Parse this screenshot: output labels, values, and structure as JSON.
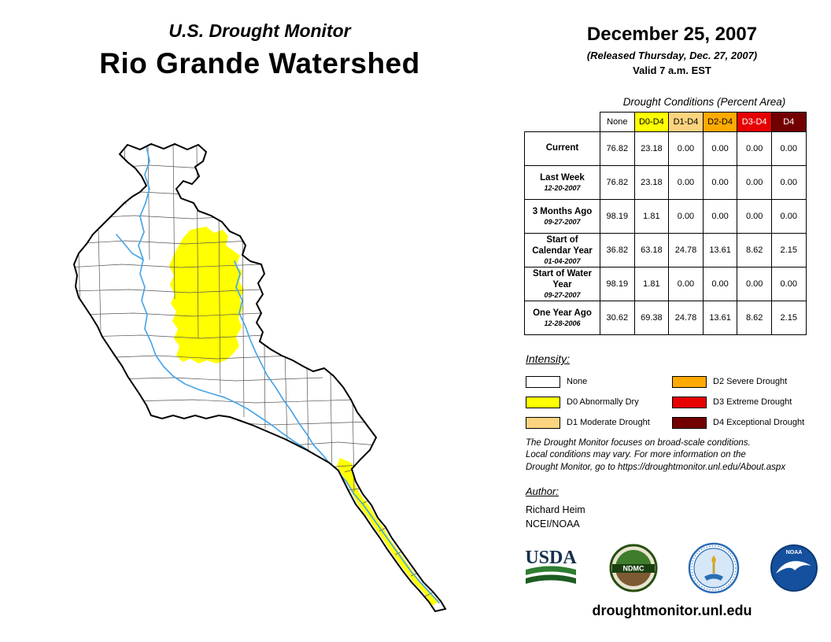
{
  "title": {
    "kicker": "U.S. Drought Monitor",
    "main": "Rio Grande Watershed"
  },
  "date_block": {
    "date": "December 25, 2007",
    "released": "(Released Thursday, Dec. 27, 2007)",
    "valid": "Valid 7 a.m. EST"
  },
  "table": {
    "caption": "Drought Conditions (Percent Area)",
    "columns": [
      {
        "label": "None",
        "bg": "#FFFFFF",
        "fg": "#000000"
      },
      {
        "label": "D0-D4",
        "bg": "#FFFF00",
        "fg": "#000000"
      },
      {
        "label": "D1-D4",
        "bg": "#FCD37F",
        "fg": "#000000"
      },
      {
        "label": "D2-D4",
        "bg": "#FFAA00",
        "fg": "#000000"
      },
      {
        "label": "D3-D4",
        "bg": "#E60000",
        "fg": "#FFFFFF"
      },
      {
        "label": "D4",
        "bg": "#730000",
        "fg": "#FFFFFF"
      }
    ],
    "rows": [
      {
        "label": "Current",
        "date": "",
        "values": [
          "76.82",
          "23.18",
          "0.00",
          "0.00",
          "0.00",
          "0.00"
        ]
      },
      {
        "label": "Last Week",
        "date": "12-20-2007",
        "values": [
          "76.82",
          "23.18",
          "0.00",
          "0.00",
          "0.00",
          "0.00"
        ]
      },
      {
        "label": "3 Months Ago",
        "date": "09-27-2007",
        "values": [
          "98.19",
          "1.81",
          "0.00",
          "0.00",
          "0.00",
          "0.00"
        ]
      },
      {
        "label": "Start of Calendar Year",
        "date": "01-04-2007",
        "values": [
          "36.82",
          "63.18",
          "24.78",
          "13.61",
          "8.62",
          "2.15"
        ]
      },
      {
        "label": "Start of Water Year",
        "date": "09-27-2007",
        "values": [
          "98.19",
          "1.81",
          "0.00",
          "0.00",
          "0.00",
          "0.00"
        ]
      },
      {
        "label": "One Year Ago",
        "date": "12-28-2006",
        "values": [
          "30.62",
          "69.38",
          "24.78",
          "13.61",
          "8.62",
          "2.15"
        ]
      }
    ]
  },
  "legend": {
    "title": "Intensity:",
    "items": [
      {
        "label": "None",
        "color": "#FFFFFF"
      },
      {
        "label": "D0 Abnormally Dry",
        "color": "#FFFF00"
      },
      {
        "label": "D1 Moderate Drought",
        "color": "#FCD37F"
      },
      {
        "label": "D2 Severe Drought",
        "color": "#FFAA00"
      },
      {
        "label": "D3 Extreme Drought",
        "color": "#E60000"
      },
      {
        "label": "D4 Exceptional Drought",
        "color": "#730000"
      }
    ]
  },
  "disclaimer": {
    "lines": [
      "The Drought Monitor focuses on broad-scale conditions.",
      "Local conditions may vary. For more information on the",
      "Drought Monitor, go to https://droughtmonitor.unl.edu/About.aspx"
    ]
  },
  "author": {
    "title": "Author:",
    "name": "Richard Heim",
    "org": "NCEI/NOAA"
  },
  "logos": {
    "usda": "USDA",
    "ndmc": "NDMC",
    "noaa": "NOAA"
  },
  "footer": {
    "url": "droughtmonitor.unl.edu"
  },
  "map": {
    "d0_color": "#FFFF00",
    "river_color": "#4AA6E8",
    "outline_color": "#000000"
  }
}
